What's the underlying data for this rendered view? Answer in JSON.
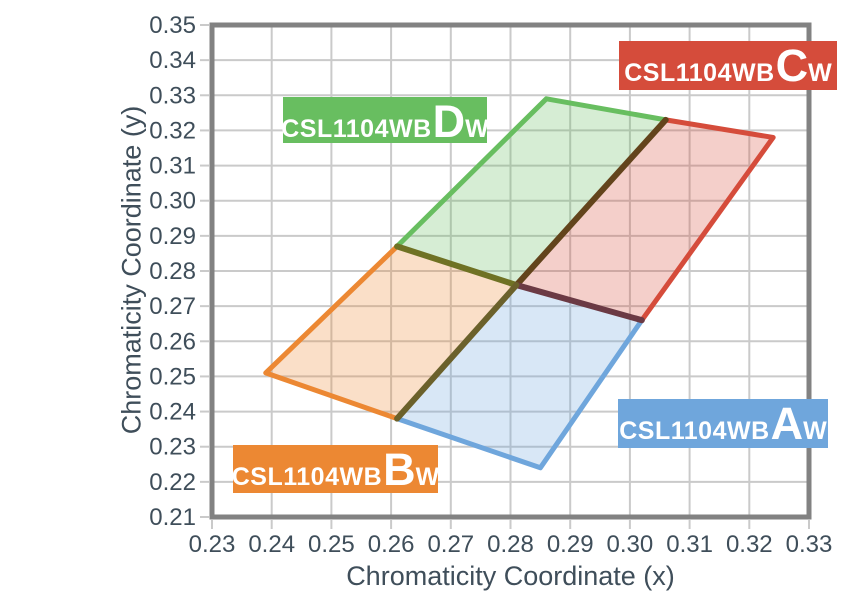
{
  "chart_data": {
    "type": "area",
    "title": "",
    "xlabel": "Chromaticity Coordinate (x)",
    "ylabel": "Chromaticity Coordinate (y)",
    "xlim": [
      0.23,
      0.33
    ],
    "ylim": [
      0.21,
      0.35
    ],
    "x_tick_labels": [
      "0.23",
      "0.24",
      "0.25",
      "0.26",
      "0.27",
      "0.28",
      "0.29",
      "0.30",
      "0.31",
      "0.32",
      "0.33"
    ],
    "y_tick_labels": [
      "0.21",
      "0.22",
      "0.23",
      "0.24",
      "0.25",
      "0.26",
      "0.27",
      "0.28",
      "0.29",
      "0.30",
      "0.31",
      "0.32",
      "0.33",
      "0.34",
      "0.35"
    ],
    "grid": true,
    "legend": "region labels as colored boxes on plot",
    "center_point": [
      0.281,
      0.276
    ],
    "regions": [
      {
        "name": "CSL1104WBAw",
        "label": {
          "prefix": "CSL1104WB",
          "letter": "A",
          "sub": "W"
        },
        "color": "#6FA6DC",
        "vertices": [
          [
            0.261,
            0.238
          ],
          [
            0.281,
            0.276
          ],
          [
            0.302,
            0.266
          ],
          [
            0.285,
            0.224
          ]
        ]
      },
      {
        "name": "CSL1104WBBw",
        "label": {
          "prefix": "CSL1104WB",
          "letter": "B",
          "sub": "W"
        },
        "color": "#EC8833",
        "vertices": [
          [
            0.239,
            0.251
          ],
          [
            0.261,
            0.287
          ],
          [
            0.281,
            0.276
          ],
          [
            0.261,
            0.238
          ]
        ]
      },
      {
        "name": "CSL1104WBCw",
        "label": {
          "prefix": "CSL1104WB",
          "letter": "C",
          "sub": "W"
        },
        "color": "#D54C3B",
        "vertices": [
          [
            0.281,
            0.276
          ],
          [
            0.306,
            0.323
          ],
          [
            0.324,
            0.318
          ],
          [
            0.302,
            0.266
          ]
        ]
      },
      {
        "name": "CSL1104WBDw",
        "label": {
          "prefix": "CSL1104WB",
          "letter": "D",
          "sub": "W"
        },
        "color": "#68BE60",
        "vertices": [
          [
            0.261,
            0.287
          ],
          [
            0.286,
            0.329
          ],
          [
            0.306,
            0.323
          ],
          [
            0.281,
            0.276
          ]
        ]
      }
    ],
    "divider_lines": [
      {
        "from": [
          0.281,
          0.276
        ],
        "to": [
          0.261,
          0.287
        ],
        "color": "#6F7224"
      },
      {
        "from": [
          0.281,
          0.276
        ],
        "to": [
          0.306,
          0.323
        ],
        "color": "#63441C"
      },
      {
        "from": [
          0.281,
          0.276
        ],
        "to": [
          0.302,
          0.266
        ],
        "color": "#6B3A44"
      },
      {
        "from": [
          0.281,
          0.276
        ],
        "to": [
          0.261,
          0.238
        ],
        "color": "#6B612B"
      }
    ],
    "colors": {
      "grid": "#CACACA",
      "plot_border": "#828282",
      "axis_text": "#3F4E5A",
      "fill_opacity": 0.27
    }
  }
}
